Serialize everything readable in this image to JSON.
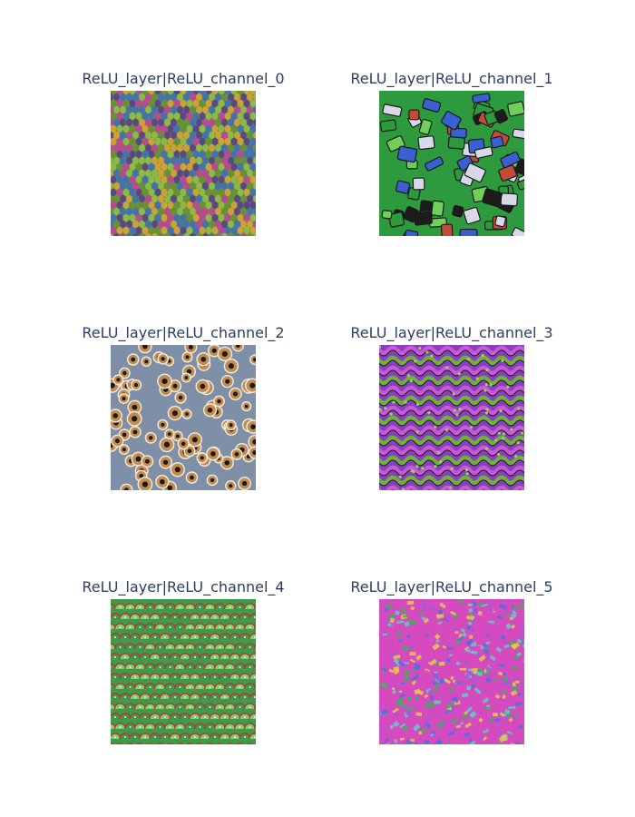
{
  "panels": [
    {
      "title": "ReLU_layer|ReLU_channel_0",
      "colors": [
        "#6a8f3a",
        "#c43fa0",
        "#3e6fbf",
        "#8fbf4a",
        "#d9a23a",
        "#5a3f8f"
      ]
    },
    {
      "title": "ReLU_layer|ReLU_channel_1",
      "colors": [
        "#2e9a3e",
        "#1c1c1c",
        "#d8d8e8",
        "#3a5fd0",
        "#c44a3a",
        "#6fcf5a"
      ]
    },
    {
      "title": "ReLU_layer|ReLU_channel_2",
      "colors": [
        "#7f8fa8",
        "#1a1a1a",
        "#ece8d8",
        "#b8732e",
        "#4a8fd6",
        "#9aa8c0"
      ]
    },
    {
      "title": "ReLU_layer|ReLU_channel_3",
      "colors": [
        "#8a3fc0",
        "#6fb23a",
        "#3b7a2a",
        "#c85ad6",
        "#1f1f1f",
        "#9ad060"
      ]
    },
    {
      "title": "ReLU_layer|ReLU_channel_4",
      "colors": [
        "#3f9a4a",
        "#b03a3a",
        "#ececec",
        "#5a6fd0",
        "#2a2a2a",
        "#7fd06a"
      ]
    },
    {
      "title": "ReLU_layer|ReLU_channel_5",
      "colors": [
        "#d64ac0",
        "#3fae5a",
        "#4a6fe0",
        "#e8c84a",
        "#a05ad6",
        "#5ad0c8"
      ]
    }
  ]
}
